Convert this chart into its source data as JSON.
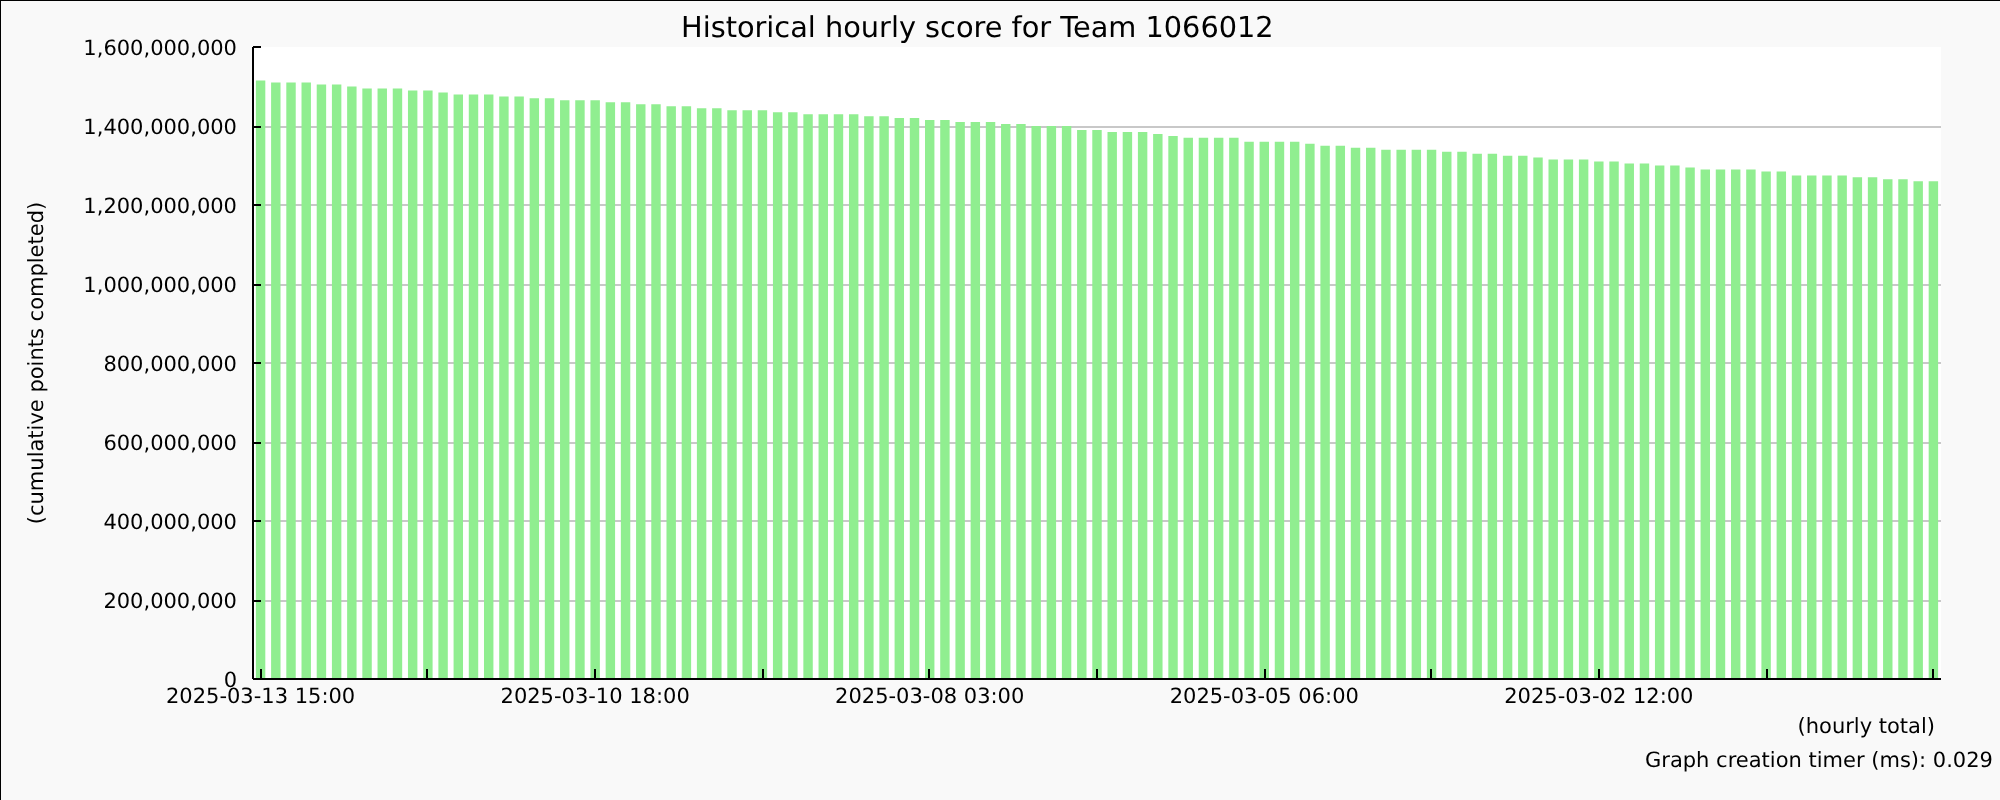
{
  "chart_data": {
    "type": "bar",
    "title": "Historical hourly score for Team 1066012",
    "xlabel": "(hourly total)",
    "ylabel": "(cumulative points completed)",
    "categories": [
      "2025-03-13 15:00",
      null,
      null,
      null,
      null,
      null,
      null,
      null,
      null,
      null,
      null,
      null,
      null,
      null,
      null,
      null,
      null,
      null,
      null,
      null,
      null,
      null,
      "2025-03-10 18:00",
      null,
      null,
      null,
      null,
      null,
      null,
      null,
      null,
      null,
      null,
      null,
      null,
      null,
      null,
      null,
      null,
      null,
      null,
      null,
      null,
      null,
      "2025-03-08 03:00",
      null,
      null,
      null,
      null,
      null,
      null,
      null,
      null,
      null,
      null,
      null,
      null,
      null,
      null,
      null,
      null,
      null,
      null,
      null,
      null,
      null,
      "2025-03-05 06:00",
      null,
      null,
      null,
      null,
      null,
      null,
      null,
      null,
      null,
      null,
      null,
      null,
      null,
      null,
      null,
      null,
      null,
      null,
      null,
      null,
      null,
      "2025-03-02 12:00",
      null,
      null,
      null,
      null,
      null,
      null,
      null,
      null,
      null,
      null,
      null,
      null,
      null,
      null,
      null,
      null,
      null,
      null,
      null,
      null,
      null,
      null
    ],
    "values": [
      1515000000,
      1510000000,
      1510000000,
      1510000000,
      1505000000,
      1505000000,
      1500000000,
      1495000000,
      1495000000,
      1495000000,
      1490000000,
      1490000000,
      1485000000,
      1480000000,
      1480000000,
      1480000000,
      1475000000,
      1475000000,
      1470000000,
      1470000000,
      1465000000,
      1465000000,
      1465000000,
      1460000000,
      1460000000,
      1455000000,
      1455000000,
      1450000000,
      1450000000,
      1445000000,
      1445000000,
      1440000000,
      1440000000,
      1440000000,
      1435000000,
      1435000000,
      1430000000,
      1430000000,
      1430000000,
      1430000000,
      1425000000,
      1425000000,
      1420000000,
      1420000000,
      1415000000,
      1415000000,
      1410000000,
      1410000000,
      1410000000,
      1405000000,
      1405000000,
      1400000000,
      1400000000,
      1400000000,
      1390000000,
      1390000000,
      1385000000,
      1385000000,
      1385000000,
      1380000000,
      1375000000,
      1370000000,
      1370000000,
      1370000000,
      1370000000,
      1360000000,
      1360000000,
      1360000000,
      1360000000,
      1355000000,
      1350000000,
      1350000000,
      1345000000,
      1345000000,
      1340000000,
      1340000000,
      1340000000,
      1340000000,
      1335000000,
      1335000000,
      1330000000,
      1330000000,
      1325000000,
      1325000000,
      1320000000,
      1315000000,
      1315000000,
      1315000000,
      1310000000,
      1310000000,
      1305000000,
      1305000000,
      1300000000,
      1300000000,
      1295000000,
      1290000000,
      1290000000,
      1290000000,
      1290000000,
      1285000000,
      1285000000,
      1275000000,
      1275000000,
      1275000000,
      1275000000,
      1270000000,
      1270000000,
      1265000000,
      1265000000,
      1260000000,
      1260000000
    ],
    "color": "#90ee90",
    "ylim": [
      0,
      1600000000
    ],
    "yticks": [
      0,
      {
        "value": 200000000,
        "label": "200,000,000"
      },
      {
        "value": 400000000,
        "label": "400,000,000"
      },
      {
        "value": 600000000,
        "label": "600,000,000"
      },
      {
        "value": 800000000,
        "label": "800,000,000"
      },
      {
        "value": 1000000000,
        "label": "1,000,000,000"
      },
      {
        "value": 1200000000,
        "label": "1,200,000,000"
      },
      {
        "value": 1400000000,
        "label": "1,400,000,000"
      },
      {
        "value": 1600000000,
        "label": "1,600,000,000"
      }
    ],
    "grid": "y",
    "annotations": [
      "Graph creation timer (ms): 0.029"
    ]
  }
}
